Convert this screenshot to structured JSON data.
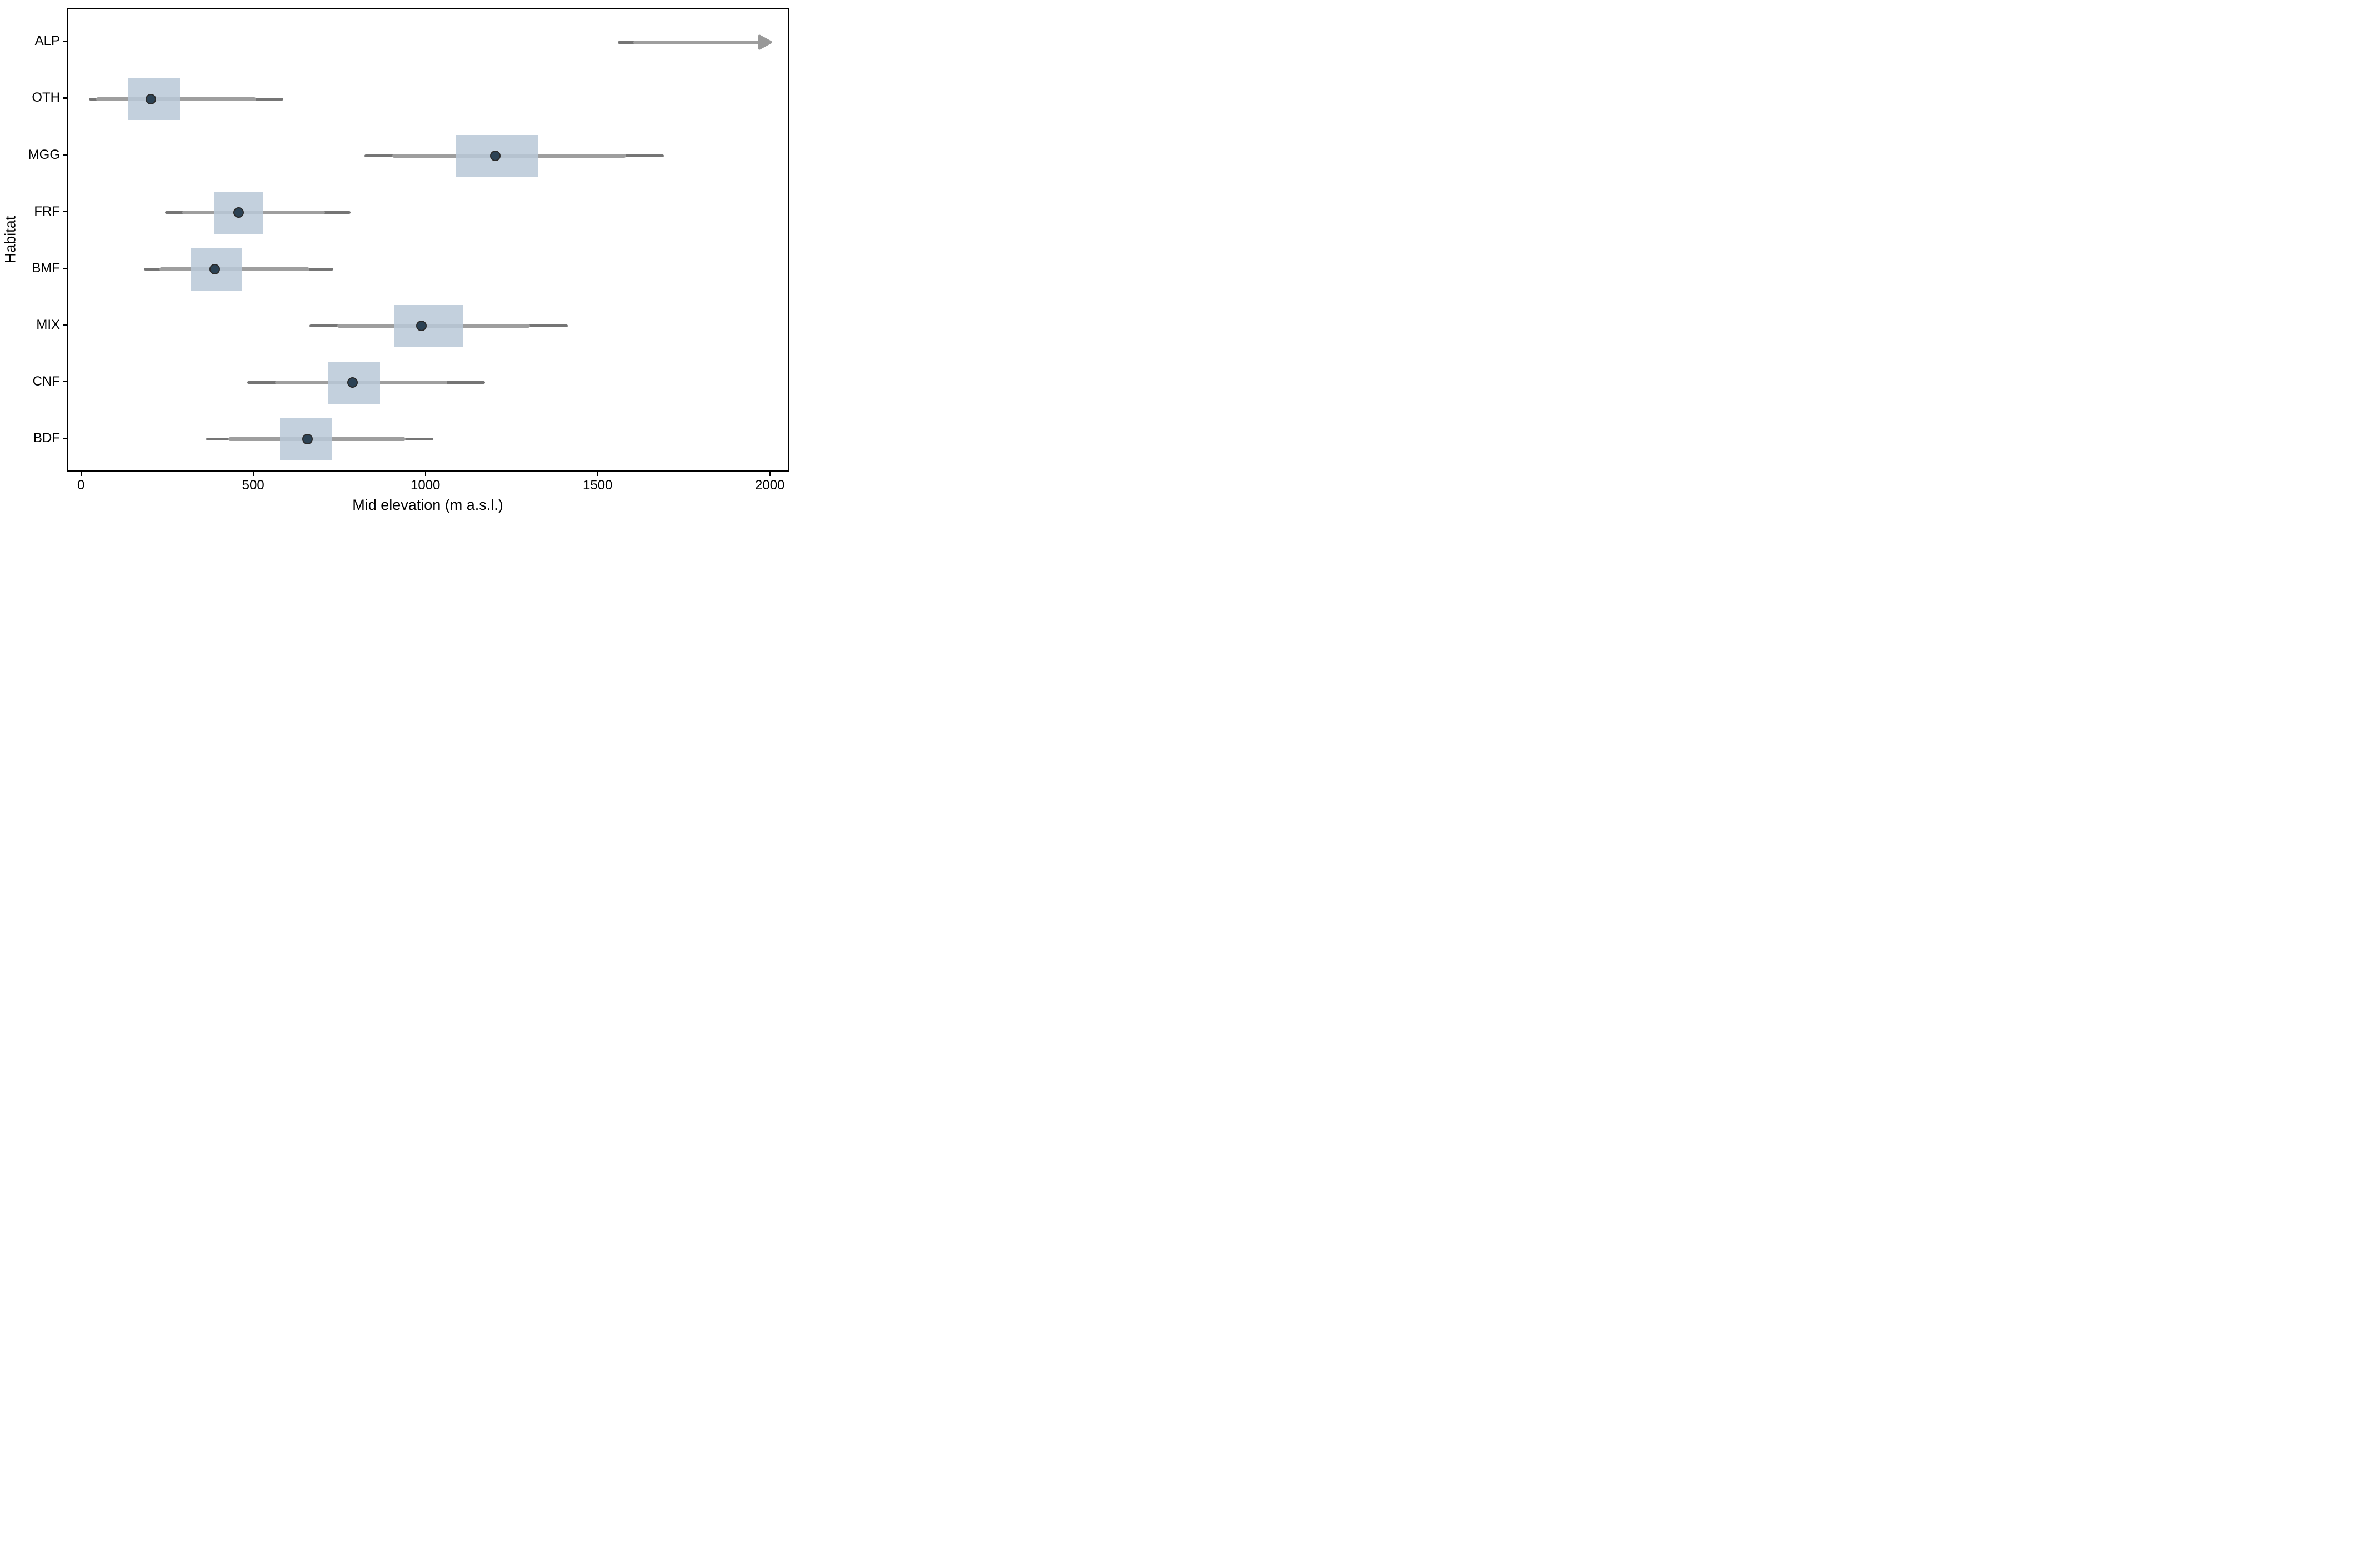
{
  "chart_data": {
    "type": "pointinterval",
    "title": "",
    "xlabel": "Mid elevation (m a.s.l.)",
    "ylabel": "Habitat",
    "x_ticks": [
      0,
      500,
      1000,
      1500,
      2000
    ],
    "xlim": [
      -41,
      2054
    ],
    "grid": "off",
    "legend": "none",
    "categories_top_to_bottom": [
      "ALP",
      "OTH",
      "MGG",
      "FRF",
      "BMF",
      "MIX",
      "CNF",
      "BDF"
    ],
    "rows": [
      {
        "habitat": "ALP",
        "median": null,
        "box": null,
        "interval_thick": [
          1600,
          2000
        ],
        "interval_thin": [
          1555,
          2000
        ],
        "arrow_right": true
      },
      {
        "habitat": "OTH",
        "median": 200,
        "box": [
          135,
          285
        ],
        "interval_thick": [
          40,
          505
        ],
        "interval_thin": [
          20,
          585
        ],
        "arrow_right": false
      },
      {
        "habitat": "MGG",
        "median": 1200,
        "box": [
          1085,
          1325
        ],
        "interval_thick": [
          900,
          1580
        ],
        "interval_thin": [
          820,
          1690
        ],
        "arrow_right": false
      },
      {
        "habitat": "FRF",
        "median": 455,
        "box": [
          385,
          525
        ],
        "interval_thick": [
          290,
          705
        ],
        "interval_thin": [
          240,
          780
        ],
        "arrow_right": false
      },
      {
        "habitat": "BMF",
        "median": 385,
        "box": [
          315,
          465
        ],
        "interval_thick": [
          225,
          660
        ],
        "interval_thin": [
          180,
          730
        ],
        "arrow_right": false
      },
      {
        "habitat": "MIX",
        "median": 985,
        "box": [
          905,
          1105
        ],
        "interval_thick": [
          740,
          1300
        ],
        "interval_thin": [
          660,
          1410
        ],
        "arrow_right": false
      },
      {
        "habitat": "CNF",
        "median": 785,
        "box": [
          715,
          865
        ],
        "interval_thick": [
          560,
          1060
        ],
        "interval_thin": [
          480,
          1170
        ],
        "arrow_right": false
      },
      {
        "habitat": "BDF",
        "median": 655,
        "box": [
          575,
          725
        ],
        "interval_thick": [
          425,
          940
        ],
        "interval_thin": [
          360,
          1020
        ],
        "arrow_right": false
      }
    ],
    "colors": {
      "box_fill_rgba": "rgba(185,200,215,0.85)",
      "thick_interval": "#9e9e9e",
      "thin_interval": "#757575",
      "arrow": "#999999",
      "point_fill": "#2c4254",
      "point_outline": "#2a2a2a",
      "axis": "#000000"
    }
  }
}
